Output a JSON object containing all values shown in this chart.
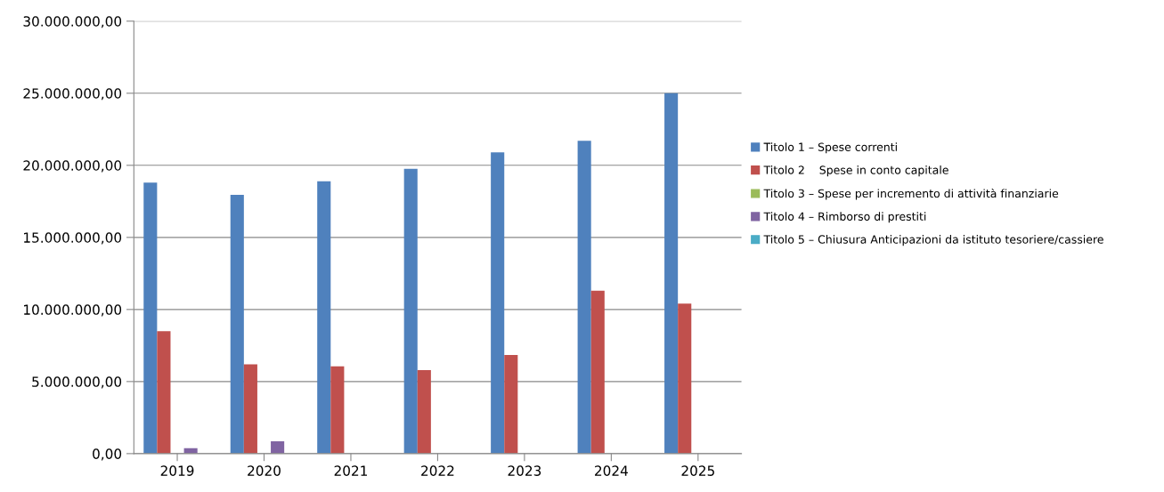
{
  "chart_data": {
    "type": "bar",
    "categories": [
      "2019",
      "2020",
      "2021",
      "2022",
      "2023",
      "2024",
      "2025"
    ],
    "series": [
      {
        "name": "Titolo 1 – Spese correnti",
        "color": "#4f81bd",
        "values": [
          18800000,
          17950000,
          18900000,
          19750000,
          20900000,
          21700000,
          25000000
        ]
      },
      {
        "name": "Titolo 2    Spese in conto capitale",
        "color": "#c0504d",
        "values": [
          8500000,
          6200000,
          6050000,
          5800000,
          6850000,
          11300000,
          10400000
        ]
      },
      {
        "name": "Titolo 3 – Spese per incremento di attività finanziarie",
        "color": "#9bbb59",
        "values": [
          0,
          0,
          0,
          0,
          0,
          0,
          0
        ]
      },
      {
        "name": "Titolo 4 – Rimborso di prestiti",
        "color": "#8064a2",
        "values": [
          370000,
          860000,
          0,
          0,
          0,
          0,
          0
        ]
      },
      {
        "name": "Titolo 5 – Chiusura Anticipazioni da istituto tesoriere/cassiere",
        "color": "#4bacc6",
        "values": [
          0,
          0,
          0,
          0,
          0,
          0,
          0
        ]
      }
    ],
    "ylim": [
      0,
      30000000
    ],
    "yticks": [
      {
        "value": 0,
        "label": "0,00"
      },
      {
        "value": 5000000,
        "label": "5.000.000,00"
      },
      {
        "value": 10000000,
        "label": "10.000.000,00"
      },
      {
        "value": 15000000,
        "label": "15.000.000,00"
      },
      {
        "value": 20000000,
        "label": "20.000.000,00"
      },
      {
        "value": 25000000,
        "label": "25.000.000,00"
      },
      {
        "value": 30000000,
        "label": "30.000.000,00"
      }
    ],
    "grid": "y",
    "legend": "right"
  }
}
